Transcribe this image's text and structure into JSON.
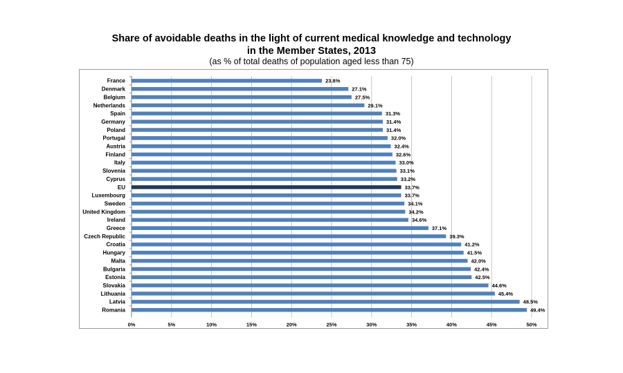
{
  "header": {
    "title_line1": "Share of avoidable deaths in the light of current medical knowledge and technology",
    "title_line2": "in the Member States, 2013",
    "subtitle": "(as % of total deaths of population aged less than 75)"
  },
  "chart_data": {
    "type": "bar",
    "orientation": "horizontal",
    "title": "Share of avoidable deaths in the light of current medical knowledge and technology in the Member States, 2013",
    "subtitle": "(as % of total deaths of population aged less than 75)",
    "categories": [
      "France",
      "Denmark",
      "Belgium",
      "Netherlands",
      "Spain",
      "Germany",
      "Poland",
      "Portugal",
      "Austria",
      "Finland",
      "Italy",
      "Slovenia",
      "Cyprus",
      "EU",
      "Luxembourg",
      "Sweden",
      "United Kingdom",
      "Ireland",
      "Greece",
      "Czech Republic",
      "Croatia",
      "Hungary",
      "Malta",
      "Bulgaria",
      "Estonia",
      "Slovakia",
      "Lithuania",
      "Latvia",
      "Romania"
    ],
    "values": [
      23.8,
      27.1,
      27.5,
      29.1,
      31.3,
      31.4,
      31.4,
      32.0,
      32.4,
      32.6,
      33.0,
      33.1,
      33.2,
      33.7,
      33.7,
      34.1,
      34.2,
      34.6,
      37.1,
      39.3,
      41.2,
      41.5,
      42.0,
      42.4,
      42.5,
      44.6,
      45.4,
      48.5,
      49.4
    ],
    "value_labels": [
      "23.8%",
      "27.1%",
      "27.5%",
      "29.1%",
      "31.3%",
      "31.4%",
      "31.4%",
      "32.0%",
      "32.4%",
      "32.6%",
      "33.0%",
      "33.1%",
      "33.2%",
      "33.7%",
      "33.7%",
      "34.1%",
      "34.2%",
      "34.6%",
      "37.1%",
      "39.3%",
      "41.2%",
      "41.5%",
      "42.0%",
      "42.4%",
      "42.5%",
      "44.6%",
      "45.4%",
      "48.5%",
      "49.4%"
    ],
    "highlight": "EU",
    "xlim": [
      0,
      50
    ],
    "x_ticks": [
      0,
      5,
      10,
      15,
      20,
      25,
      30,
      35,
      40,
      45,
      50
    ],
    "x_tick_labels": [
      "0%",
      "5%",
      "10%",
      "15%",
      "20%",
      "25%",
      "30%",
      "35%",
      "40%",
      "45%",
      "50%"
    ],
    "grid": true,
    "xlabel": "",
    "ylabel": "",
    "colors": {
      "bar": "#4f81bd",
      "highlight": "#1f3a5f",
      "grid": "#b8b8b8"
    }
  }
}
